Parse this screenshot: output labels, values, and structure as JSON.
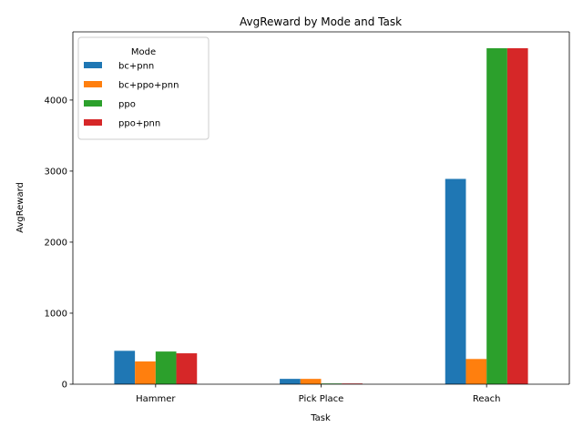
{
  "chart_data": {
    "type": "bar",
    "title": "AvgReward by Mode and Task",
    "xlabel": "Task",
    "ylabel": "AvgReward",
    "categories": [
      "Hammer",
      "Pick Place",
      "Reach"
    ],
    "ylim": [
      0,
      4960
    ],
    "yticks": [
      0,
      1000,
      2000,
      3000,
      4000
    ],
    "grid": false,
    "legend": {
      "title": "Mode",
      "placement": "top-left"
    },
    "series": [
      {
        "name": "bc+pnn",
        "color": "#1f77b4",
        "values": [
          470,
          75,
          2890
        ]
      },
      {
        "name": "bc+ppo+pnn",
        "color": "#ff7f0e",
        "values": [
          320,
          75,
          355
        ]
      },
      {
        "name": "ppo",
        "color": "#2ca02c",
        "values": [
          460,
          10,
          4730
        ]
      },
      {
        "name": "ppo+pnn",
        "color": "#d62728",
        "values": [
          435,
          10,
          4730
        ]
      }
    ]
  }
}
